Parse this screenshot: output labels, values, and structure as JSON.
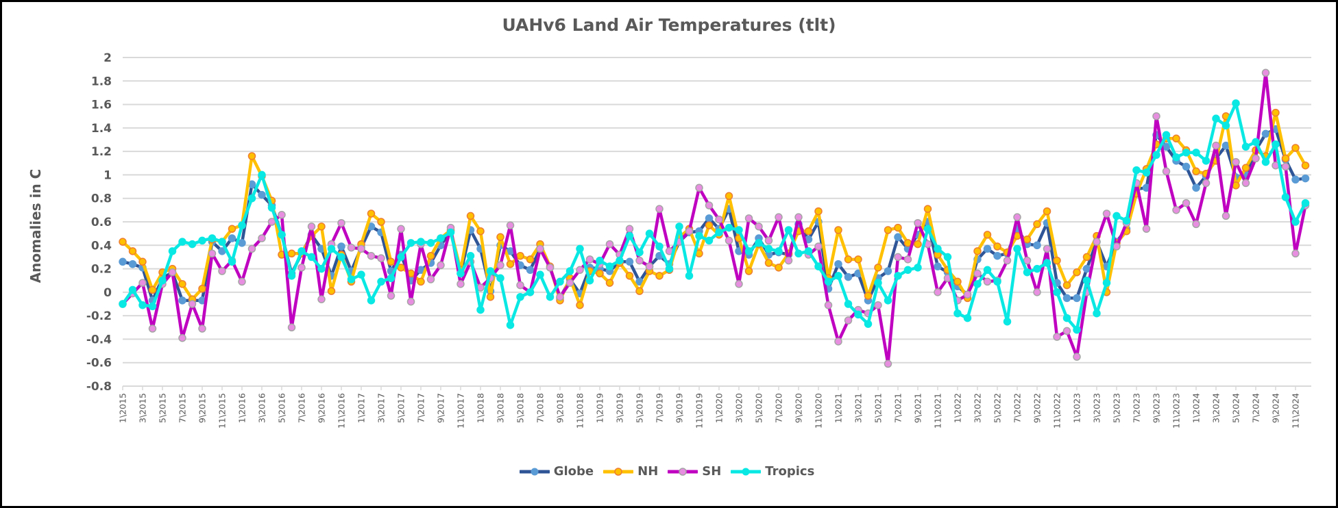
{
  "chart_data": {
    "type": "line",
    "title": "UAHv6 Land Air Temperatures (tlt)",
    "ylabel": "Anomalies in C",
    "xlabel": "",
    "ylim": [
      -0.8,
      2
    ],
    "y_ticks": [
      "2",
      "1.8",
      "1.6",
      "1.4",
      "1.2",
      "1",
      "0.8",
      "0.6",
      "0.4",
      "0.2",
      "0",
      "-0.2",
      "-0.4",
      "-0.6",
      "-0.8"
    ],
    "grid": "horizontal",
    "legend_position": "bottom",
    "categories": [
      "1\\2015",
      "2\\2015",
      "3\\2015",
      "4\\2015",
      "5\\2015",
      "6\\2015",
      "7\\2015",
      "8\\2015",
      "9\\2015",
      "10\\2015",
      "11\\2015",
      "12\\2015",
      "1\\2016",
      "2\\2016",
      "3\\2016",
      "4\\2016",
      "5\\2016",
      "6\\2016",
      "7\\2016",
      "8\\2016",
      "9\\2016",
      "10\\2016",
      "11\\2016",
      "12\\2016",
      "1\\2017",
      "2\\2017",
      "3\\2017",
      "4\\2017",
      "5\\2017",
      "6\\2017",
      "7\\2017",
      "8\\2017",
      "9\\2017",
      "10\\2017",
      "11\\2017",
      "12\\2017",
      "1\\2018",
      "2\\2018",
      "3\\2018",
      "4\\2018",
      "5\\2018",
      "6\\2018",
      "7\\2018",
      "8\\2018",
      "9\\2018",
      "10\\2018",
      "11\\2018",
      "12\\2018",
      "1\\2019",
      "2\\2019",
      "3\\2019",
      "4\\2019",
      "5\\2019",
      "6\\2019",
      "7\\2019",
      "8\\2019",
      "9\\2019",
      "10\\2019",
      "11\\2019",
      "12\\2019",
      "1\\2020",
      "2\\2020",
      "3\\2020",
      "4\\2020",
      "5\\2020",
      "6\\2020",
      "7\\2020",
      "8\\2020",
      "9\\2020",
      "10\\2020",
      "11\\2020",
      "12\\2020",
      "1\\2021",
      "2\\2021",
      "3\\2021",
      "4\\2021",
      "5\\2021",
      "6\\2021",
      "7\\2021",
      "8\\2021",
      "9\\2021",
      "10\\2021",
      "11\\2021",
      "12\\2021",
      "1\\2022",
      "2\\2022",
      "3\\2022",
      "4\\2022",
      "5\\2022",
      "6\\2022",
      "7\\2022",
      "8\\2022",
      "9\\2022",
      "10\\2022",
      "11\\2022",
      "12\\2022",
      "1\\2023",
      "2\\2023",
      "3\\2023",
      "4\\2023",
      "5\\2023",
      "6\\2023",
      "7\\2023",
      "8\\2023",
      "9\\2023",
      "10\\2023",
      "11\\2023",
      "12\\2023",
      "1\\2024",
      "2\\2024",
      "3\\2024",
      "4\\2024",
      "5\\2024",
      "6\\2024",
      "7\\2024",
      "8\\2024",
      "9\\2024",
      "10\\2024",
      "11\\2024",
      "12\\2024"
    ],
    "series": [
      {
        "name": "Globe",
        "line_color": "#2F5597",
        "marker_fill": "#5B9BD5",
        "marker_stroke": "#5B9BD5",
        "values": [
          0.26,
          0.24,
          0.21,
          -0.07,
          0.12,
          0.17,
          -0.07,
          -0.07,
          -0.07,
          0.43,
          0.35,
          0.46,
          0.42,
          0.92,
          0.83,
          0.74,
          0.49,
          0.16,
          0.33,
          0.49,
          0.37,
          0.14,
          0.39,
          0.18,
          0.38,
          0.56,
          0.51,
          0.18,
          0.32,
          0.1,
          0.19,
          0.25,
          0.4,
          0.52,
          0.16,
          0.53,
          0.37,
          0.01,
          0.4,
          0.35,
          0.23,
          0.19,
          0.37,
          0.21,
          -0.05,
          0.11,
          -0.01,
          0.21,
          0.2,
          0.18,
          0.26,
          0.26,
          0.09,
          0.22,
          0.31,
          0.24,
          0.43,
          0.51,
          0.52,
          0.63,
          0.54,
          0.71,
          0.35,
          0.32,
          0.46,
          0.32,
          0.34,
          0.32,
          0.58,
          0.45,
          0.6,
          0.03,
          0.24,
          0.13,
          0.16,
          -0.07,
          0.12,
          0.18,
          0.47,
          0.37,
          0.49,
          0.6,
          0.22,
          0.17,
          0.05,
          -0.02,
          0.28,
          0.37,
          0.31,
          0.33,
          0.54,
          0.41,
          0.4,
          0.59,
          0.08,
          -0.05,
          -0.05,
          0.2,
          0.43,
          0.22,
          0.43,
          0.54,
          0.88,
          0.89,
          1.34,
          1.24,
          1.12,
          1.07,
          0.89,
          0.99,
          1.14,
          1.25,
          0.98,
          1.0,
          1.21,
          1.35,
          1.39,
          1.13,
          0.96,
          0.97
        ]
      },
      {
        "name": "NH",
        "line_color": "#FFC000",
        "marker_fill": "#FFC000",
        "marker_stroke": "#ED7D31",
        "values": [
          0.43,
          0.35,
          0.26,
          0.02,
          0.17,
          0.2,
          0.07,
          -0.06,
          0.03,
          0.45,
          0.43,
          0.54,
          0.57,
          1.16,
          0.99,
          0.78,
          0.32,
          0.33,
          0.33,
          0.48,
          0.56,
          0.01,
          0.32,
          0.09,
          0.41,
          0.67,
          0.6,
          0.26,
          0.21,
          0.16,
          0.09,
          0.31,
          0.46,
          0.53,
          0.19,
          0.65,
          0.52,
          -0.04,
          0.47,
          0.24,
          0.31,
          0.28,
          0.41,
          0.22,
          -0.07,
          0.12,
          -0.11,
          0.18,
          0.16,
          0.08,
          0.25,
          0.14,
          0.01,
          0.18,
          0.14,
          0.19,
          0.47,
          0.54,
          0.33,
          0.57,
          0.49,
          0.82,
          0.46,
          0.18,
          0.41,
          0.25,
          0.21,
          0.33,
          0.52,
          0.52,
          0.69,
          0.12,
          0.53,
          0.28,
          0.28,
          -0.03,
          0.21,
          0.53,
          0.55,
          0.42,
          0.41,
          0.71,
          0.32,
          0.19,
          0.09,
          -0.05,
          0.35,
          0.49,
          0.39,
          0.34,
          0.48,
          0.45,
          0.58,
          0.69,
          0.27,
          0.06,
          0.17,
          0.3,
          0.48,
          0.0,
          0.42,
          0.52,
          0.84,
          1.05,
          1.26,
          1.31,
          1.31,
          1.21,
          1.03,
          1.01,
          1.12,
          1.5,
          0.91,
          1.06,
          1.21,
          1.16,
          1.53,
          1.14,
          1.23,
          1.08
        ]
      },
      {
        "name": "SH",
        "line_color": "#C000C0",
        "marker_fill": "#E88EE0",
        "marker_stroke": "#A5A5A5",
        "values": [
          -0.1,
          -0.01,
          0.08,
          -0.31,
          0.07,
          0.17,
          -0.39,
          -0.1,
          -0.31,
          0.33,
          0.18,
          0.27,
          0.09,
          0.37,
          0.46,
          0.6,
          0.66,
          -0.3,
          0.21,
          0.56,
          -0.06,
          0.41,
          0.59,
          0.38,
          0.37,
          0.31,
          0.29,
          -0.03,
          0.54,
          -0.08,
          0.41,
          0.11,
          0.23,
          0.55,
          0.07,
          0.26,
          0.04,
          0.12,
          0.23,
          0.57,
          0.06,
          0.0,
          0.37,
          0.21,
          -0.04,
          0.08,
          0.19,
          0.28,
          0.24,
          0.41,
          0.32,
          0.54,
          0.27,
          0.22,
          0.71,
          0.35,
          0.43,
          0.52,
          0.89,
          0.74,
          0.62,
          0.44,
          0.07,
          0.63,
          0.56,
          0.44,
          0.64,
          0.27,
          0.64,
          0.32,
          0.39,
          -0.11,
          -0.42,
          -0.24,
          -0.15,
          -0.18,
          -0.11,
          -0.61,
          0.3,
          0.28,
          0.59,
          0.41,
          0.0,
          0.12,
          -0.07,
          -0.02,
          0.16,
          0.09,
          0.1,
          0.27,
          0.64,
          0.27,
          0.0,
          0.37,
          -0.38,
          -0.33,
          -0.55,
          0.0,
          0.43,
          0.67,
          0.39,
          0.59,
          0.93,
          0.54,
          1.5,
          1.03,
          0.7,
          0.76,
          0.58,
          0.93,
          1.25,
          0.65,
          1.11,
          0.93,
          1.14,
          1.87,
          1.08,
          1.07,
          0.33,
          0.74
        ]
      },
      {
        "name": "Tropics",
        "line_color": "#0AE8E4",
        "marker_fill": "#0AE8E4",
        "marker_stroke": "#0AE8E4",
        "values": [
          -0.1,
          0.02,
          -0.11,
          -0.12,
          0.1,
          0.35,
          0.43,
          0.41,
          0.44,
          0.46,
          0.43,
          0.26,
          0.57,
          0.8,
          1.0,
          0.72,
          0.49,
          0.14,
          0.35,
          0.3,
          0.2,
          0.37,
          0.3,
          0.11,
          0.15,
          -0.07,
          0.09,
          0.12,
          0.3,
          0.42,
          0.43,
          0.42,
          0.46,
          0.51,
          0.16,
          0.31,
          -0.15,
          0.18,
          0.12,
          -0.28,
          -0.04,
          0.0,
          0.15,
          -0.04,
          0.09,
          0.18,
          0.37,
          0.1,
          0.27,
          0.22,
          0.27,
          0.48,
          0.34,
          0.5,
          0.39,
          0.2,
          0.56,
          0.14,
          0.48,
          0.44,
          0.51,
          0.55,
          0.53,
          0.35,
          0.42,
          0.37,
          0.35,
          0.53,
          0.33,
          0.35,
          0.22,
          0.09,
          0.14,
          -0.1,
          -0.19,
          -0.27,
          0.08,
          -0.07,
          0.14,
          0.19,
          0.21,
          0.54,
          0.37,
          0.3,
          -0.18,
          -0.22,
          0.07,
          0.19,
          0.09,
          -0.25,
          0.37,
          0.17,
          0.2,
          0.25,
          0.0,
          -0.22,
          -0.32,
          0.1,
          -0.18,
          0.08,
          0.65,
          0.61,
          1.04,
          1.02,
          1.17,
          1.34,
          1.15,
          1.19,
          1.19,
          1.12,
          1.48,
          1.42,
          1.61,
          1.24,
          1.28,
          1.11,
          1.26,
          0.81,
          0.6,
          0.76
        ]
      }
    ]
  }
}
